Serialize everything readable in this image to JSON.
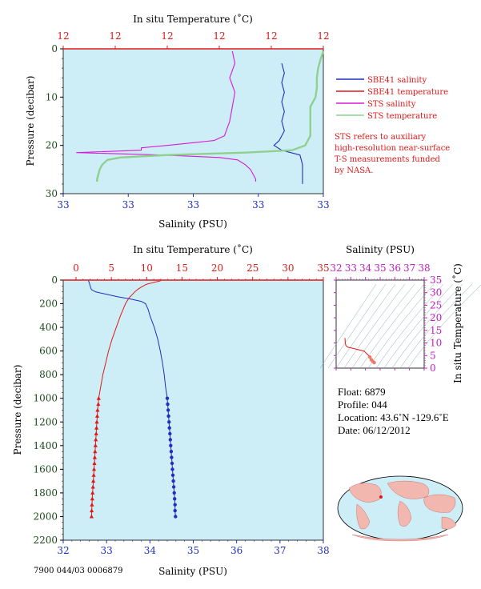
{
  "colors": {
    "plot_bg": "#cdeef7",
    "salinity": "#1f2fbf",
    "temperature": "#e01818",
    "sts_salinity": "#d61ad6",
    "sts_temperature": "#8fd08f",
    "pressure_axis": "#1c4a1c",
    "ts_axis": "#c020c0"
  },
  "top_panel": {
    "temp_axis_title": "In situ Temperature (˚C)",
    "temp_tick_labels": [
      "12",
      "12",
      "12",
      "12",
      "12",
      "12"
    ],
    "sal_axis_title": "Salinity (PSU)",
    "sal_tick_labels": [
      "33",
      "33",
      "33",
      "33",
      "33"
    ],
    "pressure_axis_title": "Pressure (decibar)",
    "pressure_tick_labels": [
      "0",
      "10",
      "20",
      "30"
    ],
    "legend": [
      {
        "label": "SBE41 salinity",
        "color": "#1f2fbf"
      },
      {
        "label": "SBE41 temperature",
        "color": "#e01818"
      },
      {
        "label": "STS salinity",
        "color": "#d61ad6"
      },
      {
        "label": "STS temperature",
        "color": "#8fd08f"
      }
    ],
    "note_lines": [
      "STS refers to auxiliary",
      "high-resolution near-surface",
      "T-S measurements funded",
      "by NASA."
    ]
  },
  "main_panel": {
    "temp_axis_title": "In situ Temperature (˚C)",
    "temp_tick_labels": [
      "0",
      "5",
      "10",
      "15",
      "20",
      "25",
      "30",
      "35"
    ],
    "sal_axis_title": "Salinity (PSU)",
    "sal_tick_labels": [
      "32",
      "33",
      "34",
      "35",
      "36",
      "37",
      "38"
    ],
    "pressure_axis_title": "Pressure (decibar)",
    "pressure_tick_labels": [
      "0",
      "200",
      "400",
      "600",
      "800",
      "1000",
      "1200",
      "1400",
      "1600",
      "1800",
      "2000",
      "2200"
    ]
  },
  "ts_panel": {
    "sal_axis_title": "Salinity (PSU)",
    "sal_tick_labels": [
      "32",
      "33",
      "34",
      "35",
      "36",
      "37",
      "38"
    ],
    "temp_axis_title": "In situ Temperature (˚C)",
    "temp_tick_labels": [
      "0",
      "5",
      "10",
      "15",
      "20",
      "25",
      "30",
      "35"
    ]
  },
  "float_info": {
    "float": "Float:  6879",
    "profile": "Profile:  044",
    "location": "Location:  43.6˚N  -129.6˚E",
    "date": "Date:  06/12/2012"
  },
  "footer_code": "7900 044/03 0006879",
  "chart_data": [
    {
      "type": "line",
      "title": "",
      "x_axis_top": "In situ Temperature (˚C)",
      "x_axis_bottom": "Salinity (PSU)",
      "ylabel": "Pressure (decibar)",
      "ylim": [
        30,
        0
      ],
      "series": [
        {
          "name": "SBE41 salinity",
          "pressure": [
            3,
            5,
            7,
            9,
            11,
            13,
            15,
            17,
            19,
            20,
            21,
            22,
            24,
            26,
            28
          ],
          "x_frac": [
            0.84,
            0.85,
            0.84,
            0.85,
            0.84,
            0.85,
            0.84,
            0.85,
            0.83,
            0.81,
            0.84,
            0.91,
            0.92,
            0.92,
            0.92
          ]
        },
        {
          "name": "SBE41 temperature",
          "pressure": [
            0.5,
            2,
            4,
            6,
            8,
            10,
            12,
            14,
            16,
            18,
            20,
            21,
            21.5,
            22,
            22.5,
            23,
            24,
            25,
            26,
            27,
            27.5
          ],
          "x_frac": [
            1.0,
            0.99,
            0.98,
            0.975,
            0.975,
            0.97,
            0.95,
            0.95,
            0.95,
            0.95,
            0.93,
            0.88,
            0.7,
            0.4,
            0.22,
            0.17,
            0.15,
            0.14,
            0.135,
            0.13,
            0.13
          ]
        },
        {
          "name": "STS salinity",
          "pressure": [
            0.5,
            3,
            6,
            9,
            12,
            15,
            18,
            19,
            20,
            20.5,
            21,
            21.5,
            22,
            22.5,
            23,
            24,
            25,
            26,
            27,
            27.5
          ],
          "x_frac": [
            0.65,
            0.66,
            0.64,
            0.66,
            0.65,
            0.64,
            0.62,
            0.58,
            0.4,
            0.3,
            0.3,
            0.05,
            0.38,
            0.6,
            0.67,
            0.7,
            0.72,
            0.73,
            0.74,
            0.74
          ]
        },
        {
          "name": "STS temperature",
          "pressure": [
            0.5,
            2,
            4,
            6,
            8,
            10,
            12,
            14,
            16,
            18,
            20,
            21,
            21.5,
            22,
            22.5,
            23,
            24,
            25,
            26,
            27,
            27.5
          ],
          "x_frac": [
            1.0,
            0.99,
            0.98,
            0.975,
            0.975,
            0.97,
            0.95,
            0.95,
            0.95,
            0.95,
            0.93,
            0.88,
            0.7,
            0.4,
            0.22,
            0.17,
            0.15,
            0.14,
            0.135,
            0.13,
            0.13
          ]
        }
      ]
    },
    {
      "type": "line",
      "title": "",
      "xlabel": "Salinity (PSU)",
      "x2label": "In situ Temperature (˚C)",
      "ylabel": "Pressure (decibar)",
      "xlim_salinity": [
        32,
        38
      ],
      "xlim_temperature": [
        0,
        35
      ],
      "ylim": [
        2200,
        0
      ],
      "series": [
        {
          "name": "Salinity",
          "pressure": [
            5,
            20,
            50,
            80,
            100,
            120,
            140,
            160,
            180,
            200,
            250,
            300,
            400,
            500,
            600,
            700,
            800,
            900,
            1000,
            1050,
            1100,
            1150,
            1200,
            1250,
            1300,
            1350,
            1400,
            1450,
            1500,
            1550,
            1600,
            1650,
            1700,
            1750,
            1800,
            1850,
            1900,
            1950,
            2000
          ],
          "salinity": [
            32.58,
            32.6,
            32.62,
            32.65,
            32.75,
            33.0,
            33.25,
            33.55,
            33.8,
            33.9,
            33.96,
            34.0,
            34.1,
            34.18,
            34.24,
            34.29,
            34.33,
            34.36,
            34.4,
            34.41,
            34.42,
            34.43,
            34.44,
            34.45,
            34.46,
            34.47,
            34.48,
            34.49,
            34.5,
            34.51,
            34.52,
            34.53,
            34.54,
            34.55,
            34.56,
            34.57,
            34.58,
            34.58,
            34.59
          ]
        },
        {
          "name": "Temperature",
          "pressure": [
            5,
            10,
            15,
            20,
            25,
            30,
            40,
            60,
            80,
            100,
            120,
            150,
            200,
            300,
            400,
            500,
            600,
            700,
            800,
            900,
            1000,
            1050,
            1100,
            1150,
            1200,
            1250,
            1300,
            1350,
            1400,
            1450,
            1500,
            1550,
            1600,
            1650,
            1700,
            1750,
            1800,
            1850,
            1900,
            1950,
            2000
          ],
          "temperature": [
            12.0,
            11.7,
            11.3,
            11.0,
            10.7,
            10.3,
            9.8,
            9.2,
            8.7,
            8.3,
            8.0,
            7.5,
            7.0,
            6.3,
            5.7,
            5.1,
            4.6,
            4.2,
            3.8,
            3.5,
            3.2,
            3.15,
            3.05,
            3.0,
            2.95,
            2.9,
            2.85,
            2.8,
            2.75,
            2.7,
            2.65,
            2.6,
            2.55,
            2.5,
            2.45,
            2.4,
            2.35,
            2.3,
            2.25,
            2.22,
            2.2
          ]
        }
      ]
    },
    {
      "type": "scatter",
      "title": "",
      "xlabel": "Salinity (PSU)",
      "ylabel": "In situ Temperature (˚C)",
      "xlim": [
        32,
        38
      ],
      "ylim": [
        0,
        35
      ],
      "series": [
        {
          "name": "T-S",
          "salinity": [
            32.6,
            32.62,
            32.66,
            32.8,
            33.2,
            33.6,
            33.9,
            34.0,
            34.15,
            34.3,
            34.4,
            34.5,
            34.59
          ],
          "temperature": [
            12.0,
            10.2,
            9.0,
            8.3,
            7.8,
            7.2,
            6.8,
            6.2,
            5.4,
            4.4,
            3.3,
            2.7,
            2.2
          ]
        }
      ]
    }
  ]
}
